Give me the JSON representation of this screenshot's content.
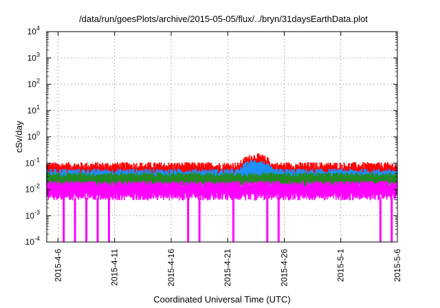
{
  "chart_data": {
    "type": "line",
    "title": "/data/run/goesPlots/archive/2015-05-05/flux/../bryn/31daysEarthData.plot",
    "xlabel": "Coordinated Universal Time (UTC)",
    "ylabel": "cSv/day",
    "yscale": "log",
    "ylim": [
      0.0001,
      10000
    ],
    "xlim": [
      "2015-04-05",
      "2015-05-06"
    ],
    "grid": true,
    "x_ticks": [
      "2015-4-6",
      "2015-4-11",
      "2015-4-16",
      "2015-4-21",
      "2015-4-26",
      "2015-5-1",
      "2015-5-6"
    ],
    "y_ticks": [
      {
        "base": "10",
        "exp": "-4"
      },
      {
        "base": "10",
        "exp": "-3"
      },
      {
        "base": "10",
        "exp": "-2"
      },
      {
        "base": "10",
        "exp": "-1"
      },
      {
        "base": "10",
        "exp": "0"
      },
      {
        "base": "10",
        "exp": "1"
      },
      {
        "base": "10",
        "exp": "2"
      },
      {
        "base": "10",
        "exp": "3"
      },
      {
        "base": "10",
        "exp": "4"
      }
    ],
    "series": [
      {
        "color": "#ff0000",
        "baseline": 0.055,
        "spread": 0.3,
        "bump": {
          "start": "2015-04-22",
          "end": "2015-04-25",
          "value": 0.12
        }
      },
      {
        "color": "#1e90ff",
        "baseline": 0.035,
        "spread": 0.25,
        "bump": {
          "start": "2015-04-22",
          "end": "2015-04-25",
          "value": 0.08
        }
      },
      {
        "color": "#228b22",
        "baseline": 0.028,
        "spread": 0.2
      },
      {
        "color": "#ff00ff",
        "baseline": 0.012,
        "spread": 0.25,
        "dropouts": [
          "2015-04-06",
          "2015-04-07",
          "2015-04-08",
          "2015-04-09",
          "2015-04-10",
          "2015-04-17",
          "2015-04-18",
          "2015-04-21",
          "2015-04-24",
          "2015-04-25",
          "2015-05-04",
          "2015-05-05"
        ],
        "dropout_value": 0.0001
      }
    ],
    "colors": {
      "red": "#ff0000",
      "blue": "#1e90ff",
      "green": "#228b22",
      "magenta": "#ff00ff",
      "grid": "#a0a0a0"
    }
  }
}
